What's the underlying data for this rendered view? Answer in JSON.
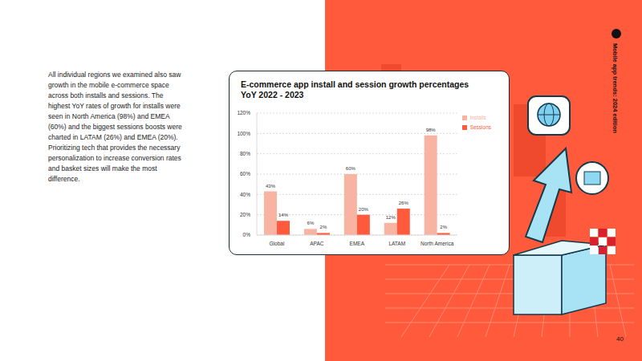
{
  "chart_data": {
    "type": "bar",
    "title": "E-commerce app install and session growth percentages YoY 2022 - 2023",
    "categories": [
      "Global",
      "APAC",
      "EMEA",
      "LATAM",
      "North America"
    ],
    "series": [
      {
        "name": "Installs",
        "color": "#f9b3a3",
        "values": [
          43,
          6,
          60,
          12,
          98
        ],
        "value_labels": [
          "43%",
          "6%",
          "60%",
          "12%",
          "98%"
        ]
      },
      {
        "name": "Sessions",
        "color": "#ff5a3c",
        "values": [
          14,
          2,
          20,
          26,
          2
        ],
        "value_labels": [
          "14%",
          "2%",
          "20%",
          "26%",
          "2%"
        ]
      }
    ],
    "ylim": [
      0,
      120
    ],
    "yticks": [
      {
        "value": 0,
        "label": "0%"
      },
      {
        "value": 20,
        "label": "20%"
      },
      {
        "value": 40,
        "label": "40%"
      },
      {
        "value": 60,
        "label": "60%"
      },
      {
        "value": 80,
        "label": "80%"
      },
      {
        "value": 100,
        "label": "100%"
      },
      {
        "value": 120,
        "label": "120%"
      }
    ],
    "grid": true,
    "legend": "top right",
    "data_labels": true
  },
  "page": {
    "paragraph": "All individual regions we examined also saw growth in the mobile e-commerce space across both installs and sessions. The highest YoY rates of growth for installs were seen in North America (98%) and EMEA (60%) and the biggest sessions boosts were charted in LATAM (26%) and EMEA (20%). Prioritizing tech that provides the necessary personalization to increase conversion rates and basket sizes will make the most difference.",
    "side_label": "Mobile app trends: 2024 edition",
    "page_number": "40"
  }
}
